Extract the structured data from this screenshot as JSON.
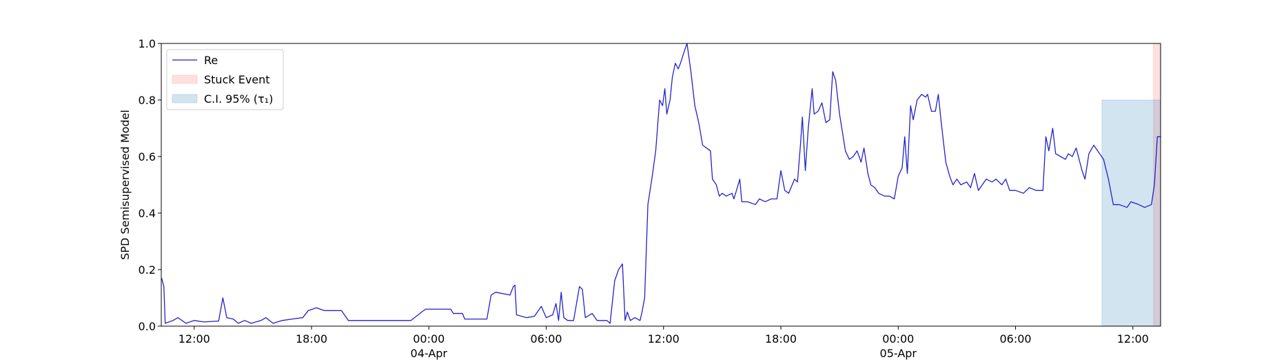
{
  "chart_data": {
    "type": "line",
    "ylabel": "SPD Semisupervised Model",
    "xlim": [
      "1900-04-03 10:19",
      "1900-04-05 13:25"
    ],
    "ylim": [
      0,
      1
    ],
    "yticks": [
      {
        "value": 0,
        "label": "0.0"
      },
      0.2,
      0.4,
      0.6,
      0.8,
      {
        "value": 1,
        "label": "1.0"
      }
    ],
    "xticks": [
      {
        "value": "1900-04-03 12:00",
        "label": "12:00"
      },
      {
        "value": "1900-04-03 18:00",
        "label": "18:00"
      },
      {
        "value": "1900-04-04 00:00",
        "label": "00:00\n04-Apr\n1900"
      },
      {
        "value": "1900-04-04 06:00",
        "label": "06:00"
      },
      {
        "value": "1900-04-04 12:00",
        "label": "12:00"
      },
      {
        "value": "1900-04-04 18:00",
        "label": "18:00"
      },
      {
        "value": "1900-04-05 00:00",
        "label": "00:00\n05-Apr"
      },
      {
        "value": "1900-04-05 06:00",
        "label": "06:00"
      },
      {
        "value": "1900-04-05 12:00",
        "label": "12:00"
      }
    ],
    "legend": "upper left",
    "spans": [
      {
        "name": "Stuck Event",
        "color": "rgba(255,150,150,0.3)",
        "x": [
          "1900-04-05 13:03",
          "1900-04-05 13:25"
        ],
        "y": [
          0,
          1
        ]
      },
      {
        "name": "C.I. 95% (τ₁)",
        "color": "rgba(31,119,180,0.2)",
        "x": [
          "1900-04-05 10:25",
          "1900-04-05 13:25"
        ],
        "y": [
          0,
          0.8
        ]
      }
    ],
    "x": [
      "1900-04-03 10:20",
      "1900-04-03 10:27",
      "1900-04-03 10:31",
      "1900-04-03 10:55",
      "1900-04-03 11:10",
      "1900-04-03 11:35",
      "1900-04-03 12:00",
      "1900-04-03 12:30",
      "1900-04-03 13:15",
      "1900-04-03 13:28",
      "1900-04-03 13:40",
      "1900-04-03 14:00",
      "1900-04-03 14:15",
      "1900-04-03 14:35",
      "1900-04-03 14:55",
      "1900-04-03 15:25",
      "1900-04-03 15:40",
      "1900-04-03 16:02",
      "1900-04-03 16:30",
      "1900-04-03 17:00",
      "1900-04-03 17:33",
      "1900-04-03 17:50",
      "1900-04-03 18:15",
      "1900-04-03 18:40",
      "1900-04-03 19:32",
      "1900-04-03 19:53",
      "1900-04-03 23:05",
      "1900-04-03 23:38",
      "1900-04-03 23:50",
      "1900-04-04 01:07",
      "1900-04-04 01:15",
      "1900-04-04 01:43",
      "1900-04-04 01:50",
      "1900-04-04 02:58",
      "1900-04-04 03:11",
      "1900-04-04 03:25",
      "1900-04-04 04:09",
      "1900-04-04 04:19",
      "1900-04-04 04:24",
      "1900-04-04 04:29",
      "1900-04-04 05:00",
      "1900-04-04 05:24",
      "1900-04-04 05:45",
      "1900-04-04 06:00",
      "1900-04-04 06:20",
      "1900-04-04 06:30",
      "1900-04-04 06:38",
      "1900-04-04 06:46",
      "1900-04-04 06:54",
      "1900-04-04 07:06",
      "1900-04-04 07:24",
      "1900-04-04 07:42",
      "1900-04-04 07:51",
      "1900-04-04 08:00",
      "1900-04-04 08:21",
      "1900-04-04 08:36",
      "1900-04-04 09:06",
      "1900-04-04 09:16",
      "1900-04-04 09:30",
      "1900-04-04 09:42",
      "1900-04-04 09:54",
      "1900-04-04 10:02",
      "1900-04-04 10:09",
      "1900-04-04 10:18",
      "1900-04-04 10:32",
      "1900-04-04 10:48",
      "1900-04-04 10:54",
      "1900-04-04 11:02",
      "1900-04-04 11:12",
      "1900-04-04 11:24",
      "1900-04-04 11:36",
      "1900-04-04 11:48",
      "1900-04-04 11:57",
      "1900-04-04 12:04",
      "1900-04-04 12:10",
      "1900-04-04 12:20",
      "1900-04-04 12:27",
      "1900-04-04 12:36",
      "1900-04-04 12:45",
      "1900-04-04 12:52",
      "1900-04-04 13:03",
      "1900-04-04 13:12",
      "1900-04-04 13:24",
      "1900-04-04 13:36",
      "1900-04-04 13:48",
      "1900-04-04 14:00",
      "1900-04-04 14:12",
      "1900-04-04 14:24",
      "1900-04-04 14:30",
      "1900-04-04 14:42",
      "1900-04-04 14:51",
      "1900-04-04 15:00",
      "1900-04-04 15:12",
      "1900-04-04 15:30",
      "1900-04-04 15:36",
      "1900-04-04 15:54",
      "1900-04-04 16:00",
      "1900-04-04 16:18",
      "1900-04-04 16:42",
      "1900-04-04 16:54",
      "1900-04-04 17:12",
      "1900-04-04 17:30",
      "1900-04-04 17:48",
      "1900-04-04 18:00",
      "1900-04-04 18:12",
      "1900-04-04 18:24",
      "1900-04-04 18:42",
      "1900-04-04 18:51",
      "1900-04-04 19:00",
      "1900-04-04 19:06",
      "1900-04-04 19:15",
      "1900-04-04 19:24",
      "1900-04-04 19:36",
      "1900-04-04 19:42",
      "1900-04-04 19:54",
      "1900-04-04 20:06",
      "1900-04-04 20:18",
      "1900-04-04 20:30",
      "1900-04-04 20:39",
      "1900-04-04 20:48",
      "1900-04-04 21:00",
      "1900-04-04 21:18",
      "1900-04-04 21:30",
      "1900-04-04 21:42",
      "1900-04-04 21:54",
      "1900-04-04 22:06",
      "1900-04-04 22:15",
      "1900-04-04 22:27",
      "1900-04-04 22:36",
      "1900-04-04 22:48",
      "1900-04-04 23:00",
      "1900-04-04 23:18",
      "1900-04-04 23:33",
      "1900-04-04 23:48",
      "1900-04-05 00:00",
      "1900-04-05 00:12",
      "1900-04-05 00:20",
      "1900-04-05 00:28",
      "1900-04-05 00:38",
      "1900-04-05 00:46",
      "1900-04-05 00:58",
      "1900-04-05 01:12",
      "1900-04-05 01:24",
      "1900-04-05 01:30",
      "1900-04-05 01:42",
      "1900-04-05 01:54",
      "1900-04-05 02:03",
      "1900-04-05 02:12",
      "1900-04-05 02:26",
      "1900-04-05 02:38",
      "1900-04-05 02:48",
      "1900-04-05 03:00",
      "1900-04-05 03:12",
      "1900-04-05 03:30",
      "1900-04-05 03:42",
      "1900-04-05 03:54",
      "1900-04-05 04:06",
      "1900-04-05 04:18",
      "1900-04-05 04:30",
      "1900-04-05 04:48",
      "1900-04-05 05:00",
      "1900-04-05 05:18",
      "1900-04-05 05:30",
      "1900-04-05 05:42",
      "1900-04-05 06:00",
      "1900-04-05 06:24",
      "1900-04-05 06:42",
      "1900-04-05 07:03",
      "1900-04-05 07:24",
      "1900-04-05 07:33",
      "1900-04-05 07:42",
      "1900-04-05 07:54",
      "1900-04-05 08:03",
      "1900-04-05 08:18",
      "1900-04-05 08:33",
      "1900-04-05 08:42",
      "1900-04-05 08:54",
      "1900-04-05 09:06",
      "1900-04-05 09:24",
      "1900-04-05 09:33",
      "1900-04-05 09:45",
      "1900-04-05 10:00",
      "1900-04-05 10:12",
      "1900-04-05 10:30",
      "1900-04-05 10:45",
      "1900-04-05 11:00",
      "1900-04-05 11:18",
      "1900-04-05 11:42",
      "1900-04-05 11:54",
      "1900-04-05 12:18",
      "1900-04-05 12:36",
      "1900-04-05 12:57",
      "1900-04-05 13:06",
      "1900-04-05 13:15",
      "1900-04-05 13:24"
    ],
    "series": [
      {
        "name": "Re",
        "color": "#1f1fcc",
        "values": [
          0.17,
          0.14,
          0.01,
          0.02,
          0.03,
          0.01,
          0.02,
          0.015,
          0.018,
          0.1,
          0.03,
          0.025,
          0.01,
          0.02,
          0.01,
          0.02,
          0.03,
          0.01,
          0.02,
          0.025,
          0.03,
          0.055,
          0.065,
          0.055,
          0.055,
          0.02,
          0.02,
          0.05,
          0.06,
          0.06,
          0.045,
          0.045,
          0.025,
          0.025,
          0.11,
          0.12,
          0.11,
          0.14,
          0.145,
          0.04,
          0.03,
          0.035,
          0.07,
          0.03,
          0.04,
          0.08,
          0.02,
          0.12,
          0.03,
          0.02,
          0.02,
          0.14,
          0.13,
          0.03,
          0.045,
          0.02,
          0.02,
          0.01,
          0.16,
          0.2,
          0.22,
          0.02,
          0.05,
          0.02,
          0.03,
          0.02,
          0.05,
          0.1,
          0.43,
          0.52,
          0.62,
          0.8,
          0.78,
          0.84,
          0.75,
          0.8,
          0.88,
          0.93,
          0.91,
          0.93,
          0.97,
          1.0,
          0.9,
          0.78,
          0.72,
          0.64,
          0.63,
          0.62,
          0.52,
          0.5,
          0.46,
          0.47,
          0.46,
          0.47,
          0.45,
          0.52,
          0.44,
          0.44,
          0.43,
          0.45,
          0.44,
          0.45,
          0.45,
          0.55,
          0.48,
          0.47,
          0.52,
          0.51,
          0.64,
          0.74,
          0.55,
          0.7,
          0.84,
          0.75,
          0.76,
          0.79,
          0.72,
          0.73,
          0.9,
          0.87,
          0.75,
          0.62,
          0.59,
          0.6,
          0.62,
          0.58,
          0.63,
          0.54,
          0.5,
          0.49,
          0.47,
          0.46,
          0.46,
          0.45,
          0.53,
          0.56,
          0.67,
          0.54,
          0.78,
          0.73,
          0.8,
          0.82,
          0.81,
          0.82,
          0.76,
          0.76,
          0.82,
          0.72,
          0.58,
          0.53,
          0.5,
          0.52,
          0.5,
          0.51,
          0.49,
          0.54,
          0.48,
          0.5,
          0.52,
          0.51,
          0.52,
          0.5,
          0.52,
          0.48,
          0.48,
          0.47,
          0.49,
          0.48,
          0.48,
          0.67,
          0.62,
          0.7,
          0.61,
          0.6,
          0.59,
          0.61,
          0.6,
          0.63,
          0.55,
          0.52,
          0.61,
          0.64,
          0.62,
          0.59,
          0.52,
          0.43,
          0.43,
          0.42,
          0.44,
          0.43,
          0.42,
          0.43,
          0.5,
          0.67,
          0.67
        ]
      }
    ]
  }
}
